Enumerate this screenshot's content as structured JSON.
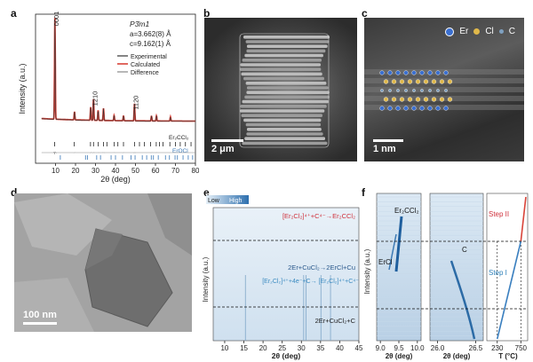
{
  "panels": {
    "a": "a",
    "b": "b",
    "c": "c",
    "d": "d",
    "e": "e",
    "f": "f"
  },
  "chart_data": [
    {
      "id": "a",
      "type": "line",
      "xlabel": "2θ (deg)",
      "ylabel": "Intensity (a.u.)",
      "xlim": [
        0,
        80
      ],
      "xticks": [
        10,
        20,
        30,
        40,
        50,
        60,
        70,
        80
      ],
      "structure": {
        "space_group": "P3̄m1",
        "a": "a=3.662(8) Å",
        "c": "c=9.162(1) Å"
      },
      "legend_position": "top-right",
      "series": [
        {
          "name": "Experimental",
          "color": "#333333"
        },
        {
          "name": "Calculated",
          "color": "#d9443a"
        },
        {
          "name": "Difference",
          "color": "#888888"
        }
      ],
      "peaks": [
        {
          "label": "0001",
          "x": 9.7,
          "y": 1.0
        },
        {
          "label": "1210",
          "x": 29.0,
          "y": 0.21
        },
        {
          "label": "1120",
          "x": 49.5,
          "y": 0.17
        }
      ],
      "minor_peaks": [
        {
          "x": 19.5,
          "y": 0.08
        },
        {
          "x": 27.6,
          "y": 0.13
        },
        {
          "x": 31.3,
          "y": 0.1
        },
        {
          "x": 34.0,
          "y": 0.12
        },
        {
          "x": 39.3,
          "y": 0.05
        },
        {
          "x": 44.0,
          "y": 0.05
        },
        {
          "x": 58.0,
          "y": 0.05
        },
        {
          "x": 60.5,
          "y": 0.05
        },
        {
          "x": 67.5,
          "y": 0.04
        }
      ],
      "phase_labels": [
        "Er2CCl2",
        "ErOCl"
      ],
      "phase_labels_display": {
        "er2ccl2": "Er₂CCl₂",
        "erocl": "ErOCl"
      },
      "ticks_phase1": [
        9.6,
        19.4,
        27.5,
        29.0,
        31.4,
        34.0,
        35.7,
        39.4,
        41.2,
        44.0,
        49.5,
        52.0,
        54.5,
        57.6,
        60.4,
        62.0,
        63.8,
        67.2,
        70.0,
        72.4,
        75.0,
        77.8
      ],
      "ticks_phase2": [
        12.4,
        25.0,
        26.0,
        30.6,
        32.5,
        37.8,
        40.0,
        43.5,
        47.8,
        49.8,
        53.4,
        55.6,
        57.9,
        59.0,
        61.4,
        65.0,
        67.0,
        69.8,
        71.0,
        73.8,
        76.4,
        78.6
      ]
    },
    {
      "id": "e",
      "type": "heatmap",
      "xlabel": "2θ (deg)",
      "ylabel": "Intensity (a.u.)",
      "xlim": [
        7,
        45
      ],
      "xticks": [
        10,
        15,
        20,
        25,
        30,
        35,
        40,
        45
      ],
      "colorbar": {
        "low": "Low",
        "high": "High"
      },
      "streaks_x": [
        15.4,
        30.6,
        31.2,
        35.1,
        37.6
      ],
      "reactions": {
        "top": "[Er2Cl2]4++C4-→Er2CCl2",
        "middle1": "2Er+CuCl2→2ErCl+Cu",
        "middle2": "[Er2Cl2]4++4e-+C→[Er2Cl2]4++C4-",
        "bottom": "2Er+CuCl2+C"
      },
      "reactions_display": {
        "top": "[Er₂Cl₂]⁴⁺+C⁴⁻→Er₂CCl₂",
        "middle1": "2Er+CuCl₂→2ErCl+Cu",
        "middle2": "[Er₂Cl₂]⁴⁺+4e⁻+C→ [Er₂Cl₂]⁴⁺+C⁴⁻",
        "bottom": "2Er+CuCl₂+C"
      }
    },
    {
      "id": "f",
      "type": "heatmap",
      "subpanels": [
        {
          "xlabel": "2θ (deg)",
          "xlim": [
            8.9,
            10.1
          ],
          "xticks": [
            9.0,
            9.5,
            10.0
          ],
          "annotations": [
            "Er2CCl2",
            "ErCl"
          ]
        },
        {
          "xlabel": "2θ (deg)",
          "xlim": [
            25.9,
            26.6
          ],
          "xticks": [
            26.0,
            26.5
          ],
          "annotations": [
            "C"
          ]
        },
        {
          "xlabel": "T (°C)",
          "xticks": [
            230,
            750
          ],
          "steps": [
            "Step I",
            "Step II"
          ]
        }
      ],
      "annotations_display": {
        "er2ccl2": "Er₂CCl₂",
        "ercl": "ErCl",
        "c": "C"
      },
      "ylabel": "Intensity (a.u.)"
    }
  ],
  "micrographs": {
    "b": {
      "scale_bar": "2 μm"
    },
    "c": {
      "scale_bar": "1 nm",
      "legend": [
        "Er",
        "Cl",
        "C"
      ],
      "legend_colors": [
        "#3a6fd0",
        "#e0b84a",
        "#7fa0c0"
      ]
    },
    "d": {
      "scale_bar": "100 nm"
    }
  }
}
